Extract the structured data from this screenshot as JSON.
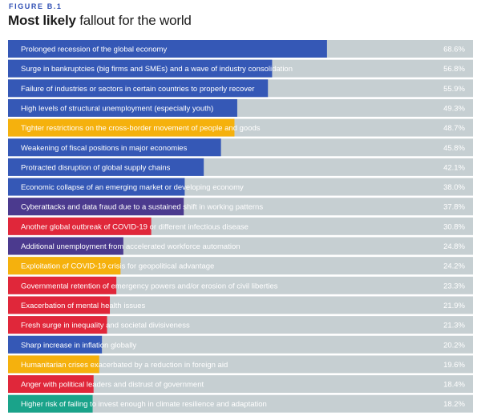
{
  "header": {
    "figure_label": "FIGURE B.1",
    "title_bold": "Most likely",
    "title_rest": " fallout for the world"
  },
  "colors": {
    "track": "#c6cfd2",
    "blue": "#3558b6",
    "orange": "#f5b10d",
    "purple": "#4b3a8e",
    "red": "#e0273a",
    "green": "#1aa38a"
  },
  "chart_data": {
    "type": "bar",
    "orientation": "horizontal",
    "title": "Most likely fallout for the world",
    "xlim": [
      0,
      100
    ],
    "categories": [
      "Prolonged recession of the global economy",
      "Surge in bankruptcies (big firms and SMEs) and a wave of industry consolidation",
      "Failure of industries or sectors in certain countries to properly recover",
      "High levels of structural unemployment (especially youth)",
      "Tighter restrictions on the cross-border movement of people and goods",
      "Weakening of fiscal positions in major economies",
      "Protracted disruption of global supply chains",
      "Economic collapse of an emerging market or developing economy",
      "Cyberattacks and data fraud due to a sustained shift in working patterns",
      "Another global outbreak of COVID-19 or different infectious disease",
      "Additional unemployment from accelerated workforce automation",
      "Exploitation of COVID-19 crisis for geopolitical advantage",
      "Governmental retention of emergency powers and/or erosion of civil liberties",
      "Exacerbation of mental health issues",
      "Fresh surge in inequality and societal divisiveness",
      "Sharp increase in inflation globally",
      "Humanitarian crises exacerbated by a reduction in foreign aid",
      "Anger with political leaders and distrust of government",
      "Higher risk of failing to invest enough in climate resilience and adaptation"
    ],
    "values": [
      68.6,
      56.8,
      55.9,
      49.3,
      48.7,
      45.8,
      42.1,
      38.0,
      37.8,
      30.8,
      24.8,
      24.2,
      23.3,
      21.9,
      21.3,
      20.2,
      19.6,
      18.4,
      18.2
    ],
    "value_labels": [
      "68.6%",
      "56.8%",
      "55.9%",
      "49.3%",
      "48.7%",
      "45.8%",
      "42.1%",
      "38.0%",
      "37.8%",
      "30.8%",
      "24.8%",
      "24.2%",
      "23.3%",
      "21.9%",
      "21.3%",
      "20.2%",
      "19.6%",
      "18.4%",
      "18.2%"
    ],
    "bar_colors": [
      "blue",
      "blue",
      "blue",
      "blue",
      "orange",
      "blue",
      "blue",
      "blue",
      "purple",
      "red",
      "purple",
      "orange",
      "red",
      "red",
      "red",
      "blue",
      "orange",
      "red",
      "green"
    ]
  }
}
